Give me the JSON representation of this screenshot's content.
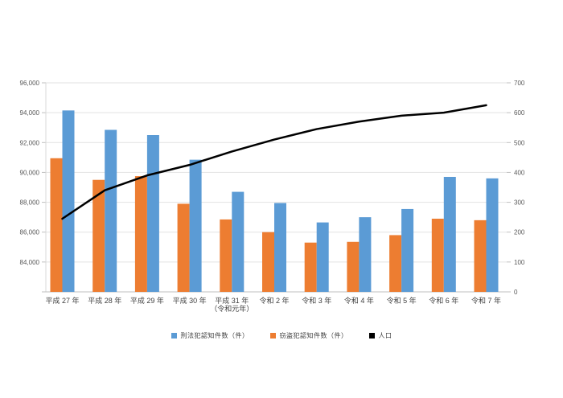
{
  "chart_data": {
    "type": "combo",
    "title": "",
    "categories": [
      "平成 27 年",
      "平成 28 年",
      "平成 29 年",
      "平成 30 年",
      "平成 31 年\n（令和元年）",
      "令和 2 年",
      "令和 3 年",
      "令和 4 年",
      "令和 5 年",
      "令和 6 年",
      "令和 7 年"
    ],
    "series": [
      {
        "name": "刑法犯認知件数（件）",
        "type": "bar",
        "axis": "left",
        "color": "#5B9BD5",
        "values": [
          94150,
          92850,
          92500,
          90850,
          88700,
          87950,
          86650,
          87000,
          87550,
          89700,
          89600
        ]
      },
      {
        "name": "窃盗犯認知件数（件）",
        "type": "bar",
        "axis": "left",
        "color": "#ED7D31",
        "values": [
          90950,
          89500,
          89750,
          87900,
          86850,
          86000,
          85300,
          85350,
          85800,
          86900,
          86800
        ]
      },
      {
        "name": "人口",
        "type": "line",
        "axis": "right",
        "color": "#000000",
        "values": [
          245,
          340,
          390,
          425,
          470,
          510,
          545,
          570,
          590,
          600,
          625
        ]
      }
    ],
    "bar_plot_order": [
      1,
      0
    ],
    "left_axis": {
      "min": 82000,
      "max": 96000,
      "tick_step": 2000,
      "labeled_ticks": [
        84000,
        86000,
        88000,
        90000,
        92000,
        94000,
        96000
      ]
    },
    "right_axis": {
      "min": 0,
      "max": 700,
      "tick_step": 100,
      "labeled_ticks": [
        0,
        100,
        200,
        300,
        400,
        500,
        600,
        700
      ]
    },
    "grid": true,
    "legend_position": "bottom"
  },
  "colors": {
    "gridline": "#E2E2E2",
    "axis_line": "#BFBFBF",
    "left_axis_line": "#D9D9D9",
    "tick_text": "#595959",
    "category_text": "#404040"
  }
}
